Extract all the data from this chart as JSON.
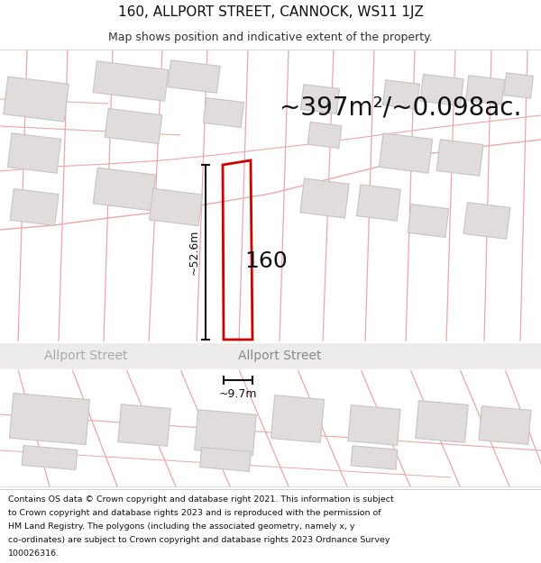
{
  "title": "160, ALLPORT STREET, CANNOCK, WS11 1JZ",
  "subtitle": "Map shows position and indicative extent of the property.",
  "area_text": "~397m²/~0.098ac.",
  "label_160": "160",
  "dim_height": "~52.6m",
  "dim_width": "~9.7m",
  "street_name_left": "Allport Street",
  "street_name_right": "Allport Street",
  "footer": "Contains OS data © Crown copyright and database right 2021. This information is subject to Crown copyright and database rights 2023 and is reproduced with the permission of HM Land Registry. The polygons (including the associated geometry, namely x, y co-ordinates) are subject to Crown copyright and database rights 2023 Ordnance Survey 100026316.",
  "bg_color": "#ffffff",
  "map_bg": "#f7f5f5",
  "building_fill": "#e0dcdc",
  "building_edge": "#c8c4c4",
  "plot_line_color": "#cc0000",
  "dim_line_color": "#111111",
  "cadastral_color": "#e8a8a8",
  "road_fill": "#eeebeb",
  "road_edge": "#d0cccc",
  "title_fontsize": 11,
  "subtitle_fontsize": 9,
  "area_fontsize": 20,
  "label_fontsize": 18,
  "dim_fontsize": 9,
  "street_fontsize": 10,
  "footer_fontsize": 6.8
}
